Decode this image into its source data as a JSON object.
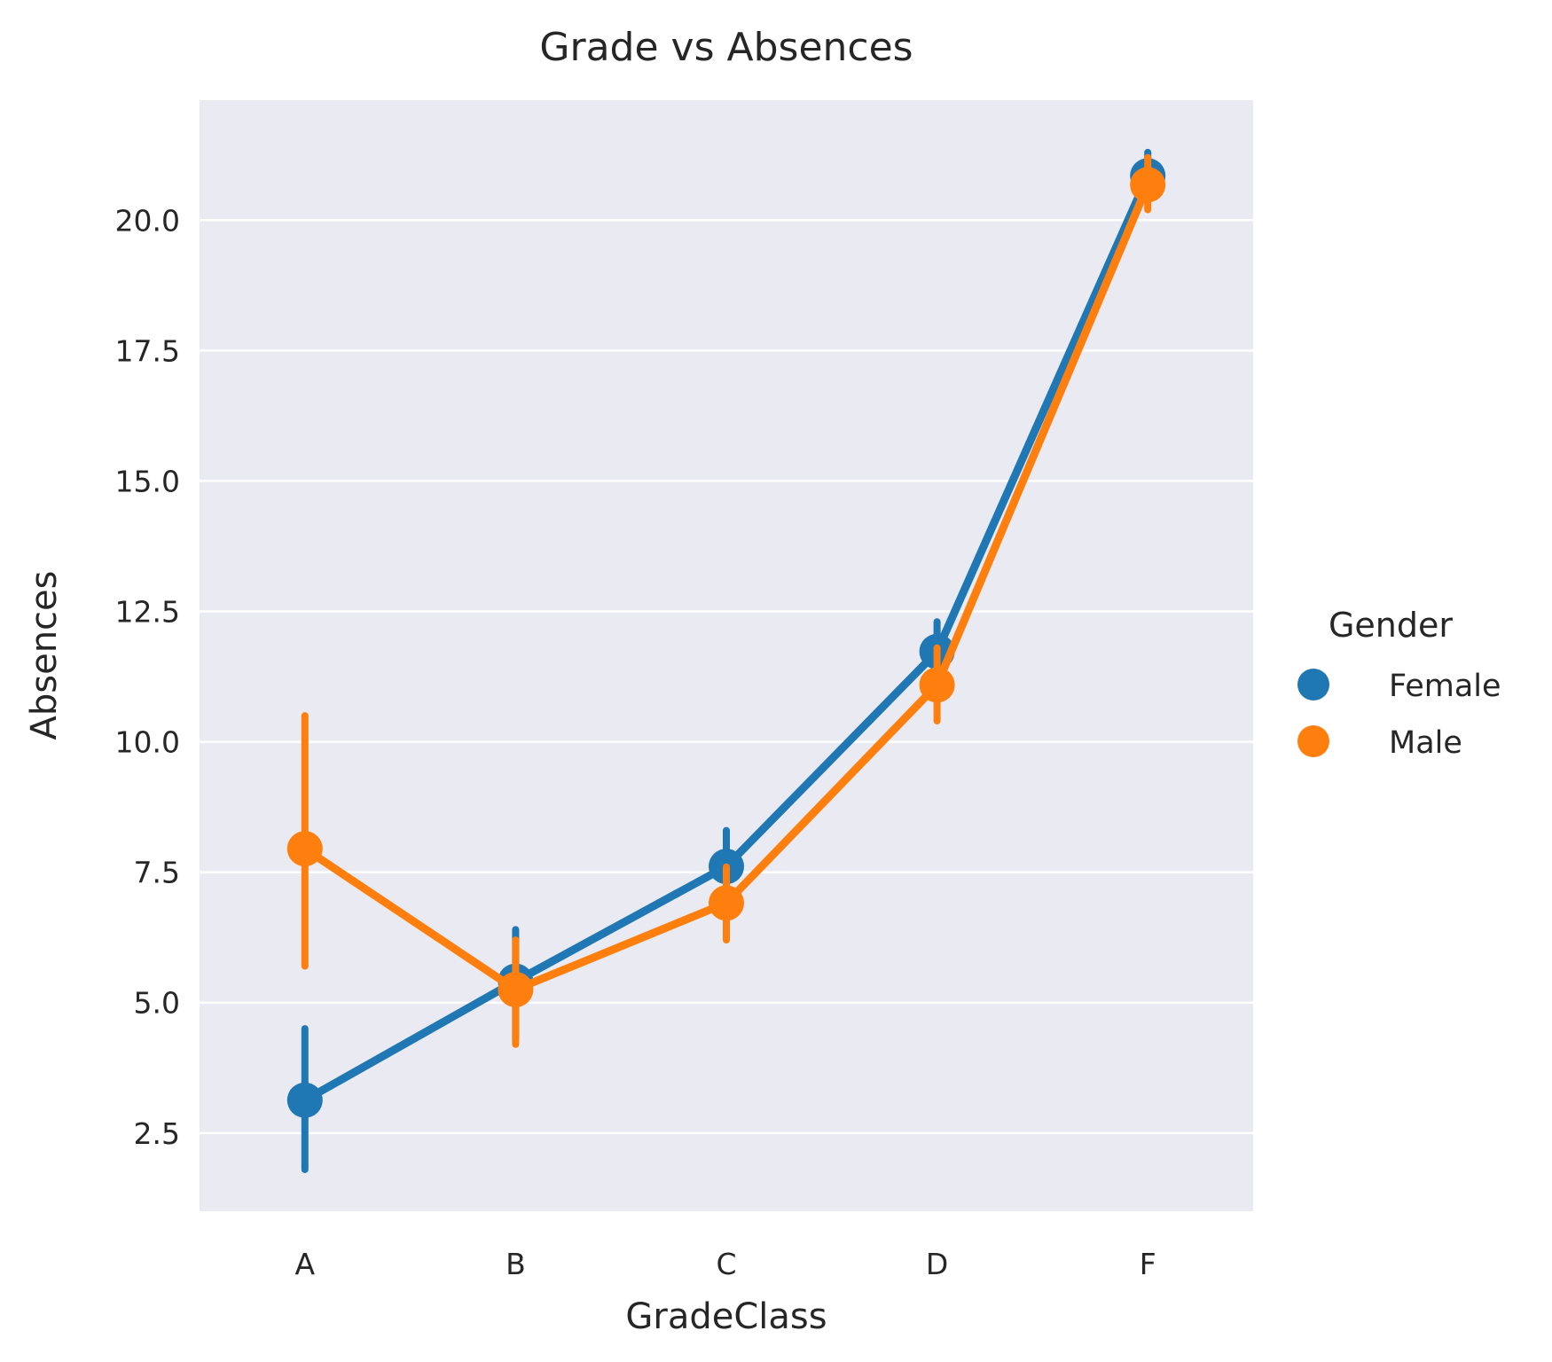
{
  "chart_data": {
    "type": "line",
    "title": "Grade vs Absences",
    "xlabel": "GradeClass",
    "ylabel": "Absences",
    "categories": [
      "A",
      "B",
      "C",
      "D",
      "F"
    ],
    "ylim": [
      1.0,
      22.3
    ],
    "yticks": [
      "2.5",
      "5.0",
      "7.5",
      "10.0",
      "12.5",
      "15.0",
      "17.5",
      "20.0"
    ],
    "ytick_values": [
      2.5,
      5.0,
      7.5,
      10.0,
      12.5,
      15.0,
      17.5,
      20.0
    ],
    "grid": true,
    "legend": {
      "title": "Gender",
      "placement": "right"
    },
    "series": [
      {
        "name": "Female",
        "color": "#1f77b4",
        "values": [
          3.13,
          5.41,
          7.61,
          11.73,
          20.85
        ],
        "ci_low": [
          1.8,
          4.3,
          6.8,
          11.2,
          20.4
        ],
        "ci_high": [
          4.5,
          6.4,
          8.3,
          12.3,
          21.3
        ]
      },
      {
        "name": "Male",
        "color": "#ff7f0e",
        "values": [
          7.95,
          5.25,
          6.91,
          11.09,
          20.68
        ],
        "ci_low": [
          5.7,
          4.2,
          6.2,
          10.4,
          20.2
        ],
        "ci_high": [
          10.5,
          6.2,
          7.6,
          11.8,
          21.2
        ]
      }
    ]
  }
}
